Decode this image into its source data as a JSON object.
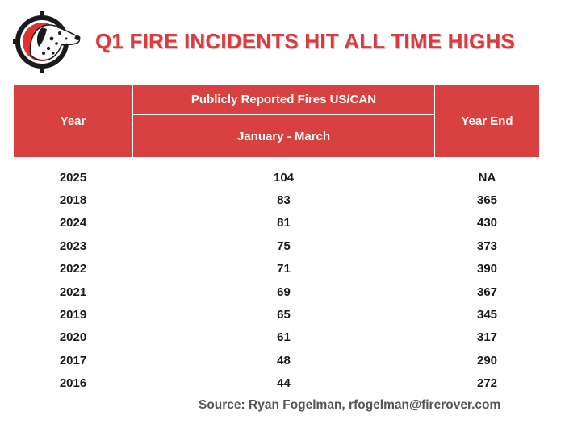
{
  "title": "Q1 FIRE INCIDENTS HIT ALL TIME HIGHS",
  "logo": {
    "icon": "dalmatian-crosshair-logo-icon",
    "ring_color": "#e03030",
    "dark_color": "#1a1a1a"
  },
  "colors": {
    "header_bg": "#d94040",
    "title": "#dc3a3c",
    "source": "#555555"
  },
  "table": {
    "header": {
      "year": "Year",
      "group": "Publicly Reported Fires US/CAN",
      "period": "January - March",
      "year_end": "Year End"
    }
  },
  "chart_data": {
    "type": "table",
    "columns": [
      "Year",
      "January - March",
      "Year End"
    ],
    "rows": [
      {
        "year": "2025",
        "q1": "104",
        "year_end": "NA"
      },
      {
        "year": "2018",
        "q1": "83",
        "year_end": "365"
      },
      {
        "year": "2024",
        "q1": "81",
        "year_end": "430"
      },
      {
        "year": "2023",
        "q1": "75",
        "year_end": "373"
      },
      {
        "year": "2022",
        "q1": "71",
        "year_end": "390"
      },
      {
        "year": "2021",
        "q1": "69",
        "year_end": "367"
      },
      {
        "year": "2019",
        "q1": "65",
        "year_end": "345"
      },
      {
        "year": "2020",
        "q1": "61",
        "year_end": "317"
      },
      {
        "year": "2017",
        "q1": "48",
        "year_end": "290"
      },
      {
        "year": "2016",
        "q1": "44",
        "year_end": "272"
      }
    ]
  },
  "source": "Source: Ryan Fogelman, rfogelman@firerover.com"
}
